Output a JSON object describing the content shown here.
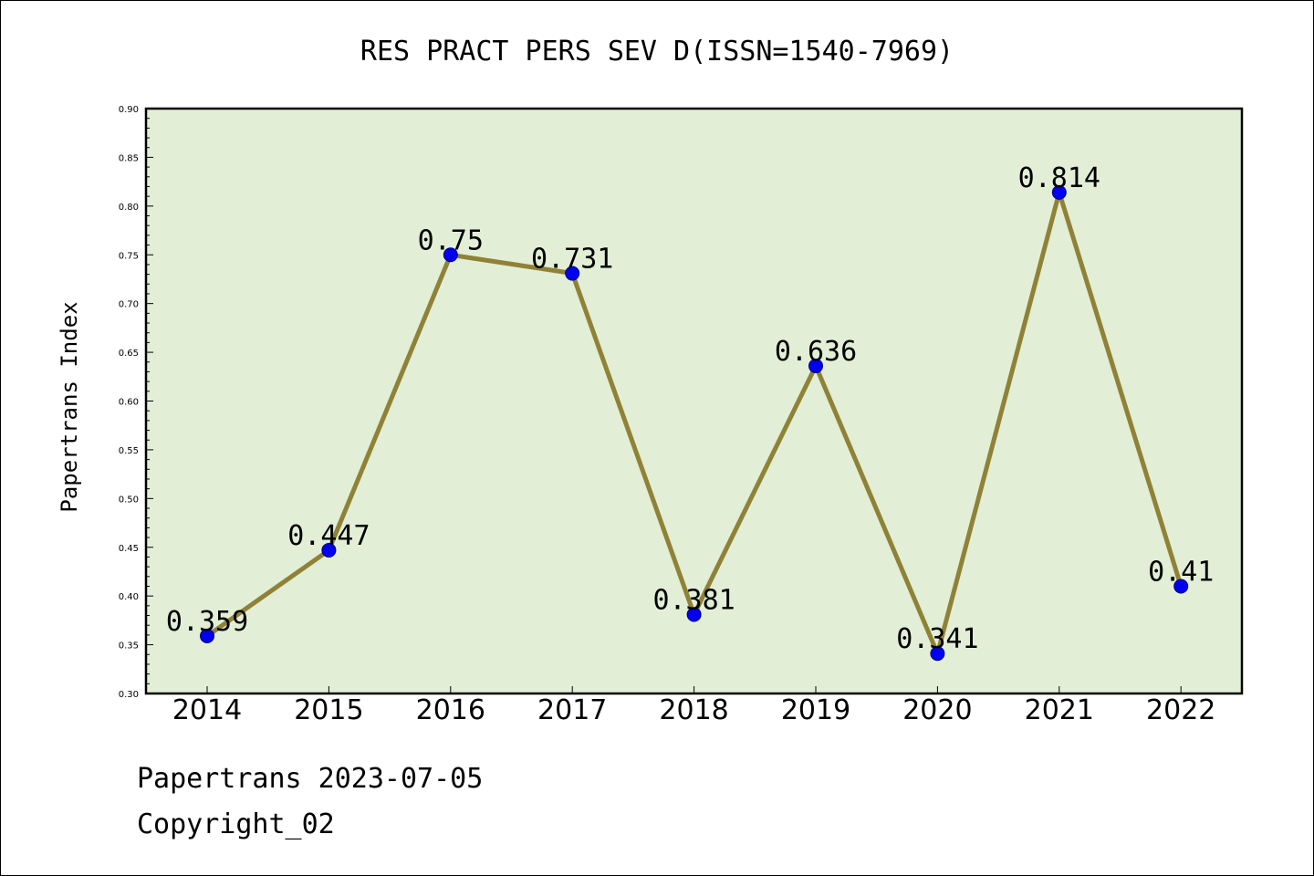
{
  "chart_data": {
    "type": "line",
    "title": "RES PRACT PERS SEV D(ISSN=1540-7969)",
    "xlabel": "",
    "ylabel": "Papertrans Index",
    "categories": [
      "2014",
      "2015",
      "2016",
      "2017",
      "2018",
      "2019",
      "2020",
      "2021",
      "2022"
    ],
    "values": [
      0.359,
      0.447,
      0.75,
      0.731,
      0.381,
      0.636,
      0.341,
      0.814,
      0.41
    ],
    "data_labels": [
      "0.359",
      "0.447",
      "0.75",
      "0.731",
      "0.381",
      "0.636",
      "0.341",
      "0.814",
      "0.41"
    ],
    "ylim": [
      0.3,
      0.9
    ],
    "yticks": [
      "0.30",
      "0.35",
      "0.40",
      "0.45",
      "0.50",
      "0.55",
      "0.60",
      "0.65",
      "0.70",
      "0.75",
      "0.80",
      "0.85",
      "0.90"
    ],
    "grid": false,
    "legend": "none",
    "colors": {
      "plot_background": "#e2efd6",
      "line": "#8f8236",
      "marker": "#0000ee",
      "marker_edge": "#000080"
    }
  },
  "footer": {
    "line1": "Papertrans 2023-07-05",
    "line2": "Copyright_02"
  }
}
